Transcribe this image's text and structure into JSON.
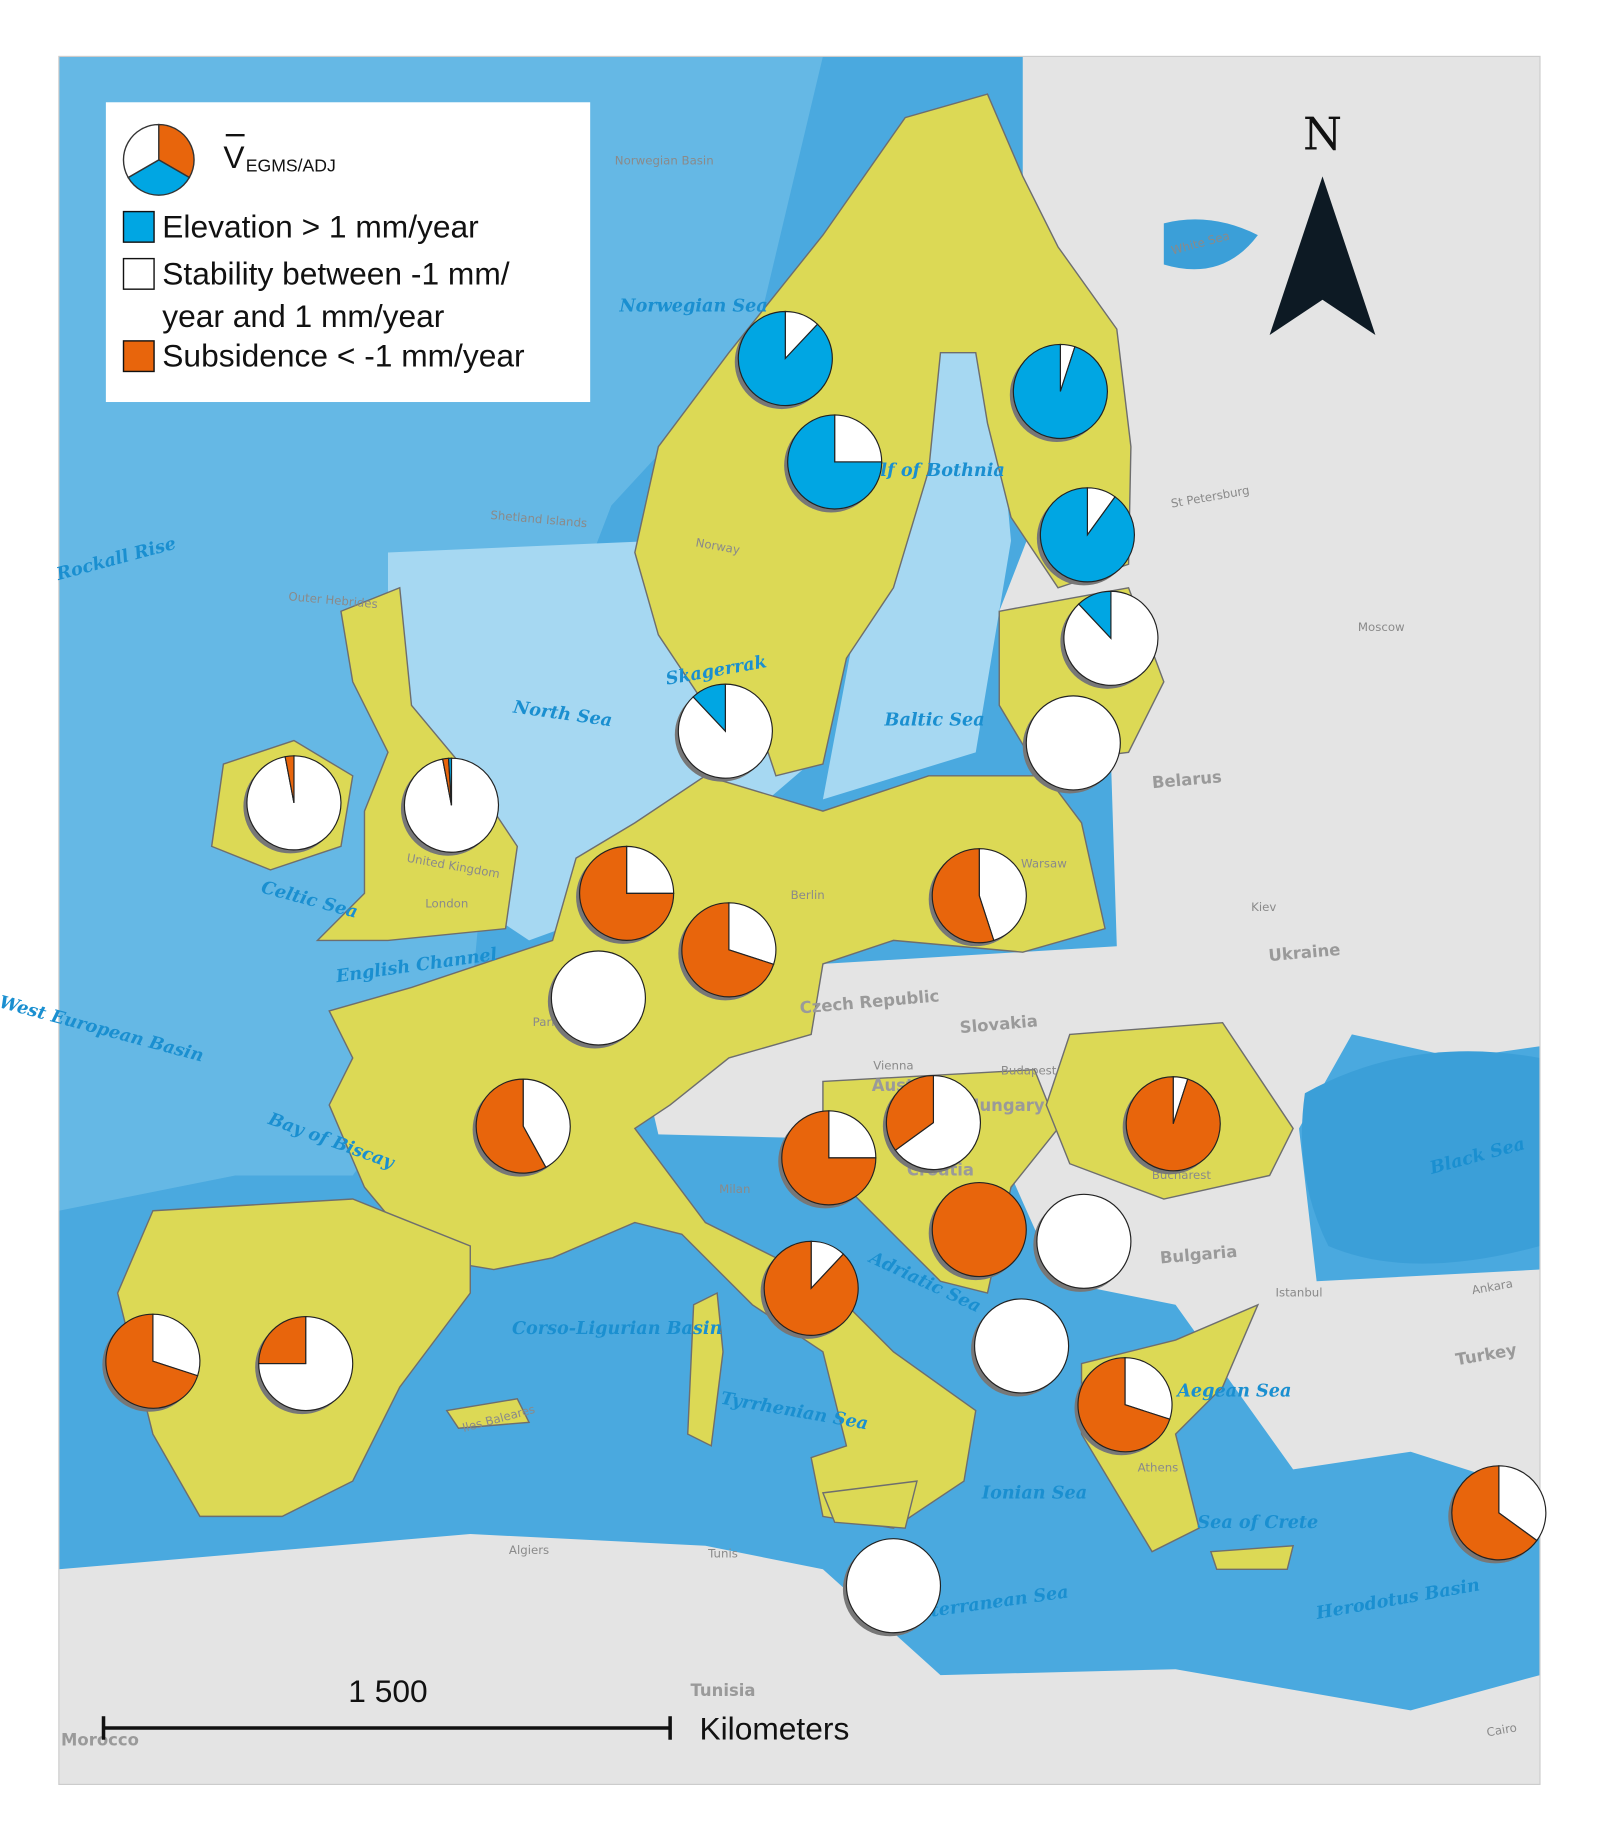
{
  "legend": {
    "symbol": "V",
    "subscript": "EGMS/ADJ",
    "items": [
      {
        "label_lines": [
          "Elevation > 1 mm/year"
        ],
        "color": "#00a6e3"
      },
      {
        "label_lines": [
          "Stability between -1 mm/",
          "year and 1 mm/year"
        ],
        "color": "#ffffff"
      },
      {
        "label_lines": [
          "Subsidence < -1 mm/year"
        ],
        "color": "#e8650c"
      }
    ]
  },
  "pies": [
    {
      "values": [
        88,
        12,
        0
      ]
    },
    {
      "values": [
        75,
        25,
        0
      ]
    },
    {
      "values": [
        95,
        5,
        0
      ]
    },
    {
      "values": [
        90,
        10,
        0
      ]
    },
    {
      "values": [
        12,
        88,
        0
      ]
    },
    {
      "values": [
        0,
        100,
        0
      ]
    },
    {
      "values": [
        12,
        88,
        0
      ]
    },
    {
      "values": [
        0,
        97,
        3
      ]
    },
    {
      "values": [
        1,
        97,
        2
      ]
    },
    {
      "values": [
        0,
        25,
        75
      ]
    },
    {
      "values": [
        0,
        30,
        70
      ]
    },
    {
      "values": [
        0,
        100,
        0
      ]
    },
    {
      "values": [
        0,
        45,
        55
      ]
    },
    {
      "values": [
        0,
        42,
        58
      ]
    },
    {
      "values": [
        0,
        25,
        75
      ]
    },
    {
      "values": [
        0,
        65,
        35
      ]
    },
    {
      "values": [
        0,
        5,
        95
      ]
    },
    {
      "values": [
        0,
        0,
        100
      ]
    },
    {
      "values": [
        0,
        100,
        0
      ]
    },
    {
      "values": [
        0,
        12,
        88
      ]
    },
    {
      "values": [
        0,
        100,
        0
      ]
    },
    {
      "values": [
        0,
        30,
        70
      ]
    },
    {
      "values": [
        0,
        35,
        65
      ]
    },
    {
      "values": [
        0,
        100,
        0
      ]
    },
    {
      "values": [
        0,
        30,
        70
      ]
    },
    {
      "values": [
        0,
        75,
        25
      ]
    }
  ],
  "map_labels": [
    "Norwegian Sea",
    "Norwegian Basin",
    "Gulf of Bothnia",
    "North Sea",
    "Baltic Sea",
    "Skagerrak",
    "Celtic Sea",
    "English Channel",
    "Bay of Biscay",
    "West European Basin",
    "Rockall Rise",
    "Corso-Ligurian Basin",
    "Tyrrhenian Sea",
    "Ionian Sea",
    "Adriatic Sea",
    "Mediterranean Sea",
    "Black Sea",
    "Aegean Sea",
    "Sea of Crete",
    "Herodotus Basin",
    "White Sea",
    "Iles Baleares",
    "Belarus",
    "Ukraine",
    "Czech Republic",
    "Slovakia",
    "Bulgaria",
    "Turkey",
    "Tunisia",
    "Morocco",
    "United Kingdom",
    "Norway",
    "Austria",
    "Hungary",
    "Croatia",
    "Vienna",
    "Budapest",
    "Kiev",
    "Istanbul",
    "Ankara",
    "Algiers",
    "Tunis",
    "Cairo",
    "Milan",
    "Berlin",
    "Paris",
    "London",
    "Bucharest",
    "Athens",
    "Warsaw",
    "St Petersburg",
    "Moscow",
    "Outer Hebrides",
    "Shetland Islands"
  ],
  "north": "N",
  "scale": {
    "distance": "1 500",
    "unit": "Kilometers"
  }
}
